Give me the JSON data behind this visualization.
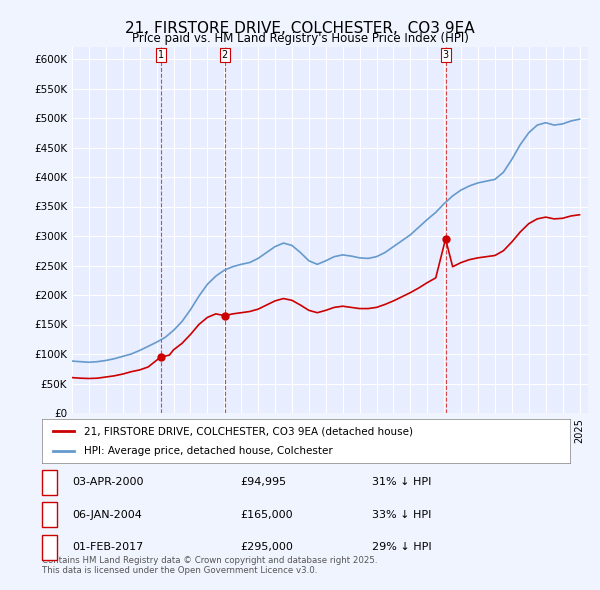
{
  "title": "21, FIRSTORE DRIVE, COLCHESTER,  CO3 9EA",
  "subtitle": "Price paid vs. HM Land Registry's House Price Index (HPI)",
  "ylabel_ticks": [
    "£0",
    "£50K",
    "£100K",
    "£150K",
    "£200K",
    "£250K",
    "£300K",
    "£350K",
    "£400K",
    "£450K",
    "£500K",
    "£550K",
    "£600K"
  ],
  "ylim": [
    0,
    620000
  ],
  "xlim_start": 1995.0,
  "xlim_end": 2025.5,
  "background_color": "#f0f4ff",
  "plot_bg_color": "#e8eeff",
  "grid_color": "#ffffff",
  "red_line_color": "#cc0000",
  "blue_line_color": "#6699cc",
  "sale_dates": [
    2000.25,
    2004.02,
    2017.08
  ],
  "sale_prices": [
    94995,
    165000,
    295000
  ],
  "sale_labels": [
    "1",
    "2",
    "3"
  ],
  "hpi_x": [
    1995,
    1995.5,
    1996,
    1996.5,
    1997,
    1997.5,
    1998,
    1998.5,
    1999,
    1999.5,
    2000,
    2000.5,
    2001,
    2001.5,
    2002,
    2002.5,
    2003,
    2003.5,
    2004,
    2004.5,
    2005,
    2005.5,
    2006,
    2006.5,
    2007,
    2007.5,
    2008,
    2008.5,
    2009,
    2009.5,
    2010,
    2010.5,
    2011,
    2011.5,
    2012,
    2012.5,
    2013,
    2013.5,
    2014,
    2014.5,
    2015,
    2015.5,
    2016,
    2016.5,
    2017,
    2017.5,
    2018,
    2018.5,
    2019,
    2019.5,
    2020,
    2020.5,
    2021,
    2021.5,
    2022,
    2022.5,
    2023,
    2023.5,
    2024,
    2024.5,
    2025
  ],
  "hpi_y": [
    88000,
    87000,
    86000,
    87000,
    89000,
    92000,
    96000,
    100000,
    106000,
    113000,
    120000,
    128000,
    140000,
    155000,
    175000,
    198000,
    218000,
    232000,
    242000,
    248000,
    252000,
    255000,
    262000,
    272000,
    282000,
    288000,
    284000,
    272000,
    258000,
    252000,
    258000,
    265000,
    268000,
    266000,
    263000,
    262000,
    265000,
    272000,
    282000,
    292000,
    302000,
    315000,
    328000,
    340000,
    355000,
    368000,
    378000,
    385000,
    390000,
    393000,
    396000,
    408000,
    430000,
    455000,
    475000,
    488000,
    492000,
    488000,
    490000,
    495000,
    498000
  ],
  "price_x": [
    1995.0,
    1995.5,
    1996.0,
    1996.5,
    1997.0,
    1997.5,
    1998.0,
    1998.5,
    1999.0,
    1999.5,
    2000.25,
    2000.75,
    2001.0,
    2001.5,
    2002.0,
    2002.5,
    2003.0,
    2003.5,
    2004.02,
    2004.5,
    2005.0,
    2005.5,
    2006.0,
    2006.5,
    2007.0,
    2007.5,
    2008.0,
    2008.5,
    2009.0,
    2009.5,
    2010.0,
    2010.5,
    2011.0,
    2011.5,
    2012.0,
    2012.5,
    2013.0,
    2013.5,
    2014.0,
    2014.5,
    2015.0,
    2015.5,
    2016.0,
    2016.5,
    2017.08,
    2017.5,
    2018.0,
    2018.5,
    2019.0,
    2019.5,
    2020.0,
    2020.5,
    2021.0,
    2021.5,
    2022.0,
    2022.5,
    2023.0,
    2023.5,
    2024.0,
    2024.5,
    2025.0
  ],
  "price_y": [
    60000,
    59000,
    58500,
    59000,
    61000,
    63000,
    66000,
    70000,
    73000,
    78000,
    94995,
    98000,
    107000,
    118000,
    133000,
    150000,
    162000,
    168000,
    165000,
    168000,
    170000,
    172000,
    176000,
    183000,
    190000,
    194000,
    191000,
    183000,
    174000,
    170000,
    174000,
    179000,
    181000,
    179000,
    177000,
    177000,
    179000,
    184000,
    190000,
    197000,
    204000,
    212000,
    221000,
    229000,
    295000,
    248000,
    255000,
    260000,
    263000,
    265000,
    267000,
    275000,
    290000,
    307000,
    321000,
    329000,
    332000,
    329000,
    330000,
    334000,
    336000
  ],
  "legend_entries": [
    "21, FIRSTORE DRIVE, COLCHESTER, CO3 9EA (detached house)",
    "HPI: Average price, detached house, Colchester"
  ],
  "transactions": [
    {
      "num": "1",
      "date": "03-APR-2000",
      "price": "£94,995",
      "pct": "31% ↓ HPI"
    },
    {
      "num": "2",
      "date": "06-JAN-2004",
      "price": "£165,000",
      "pct": "33% ↓ HPI"
    },
    {
      "num": "3",
      "date": "01-FEB-2017",
      "price": "£295,000",
      "pct": "29% ↓ HPI"
    }
  ],
  "footer": "Contains HM Land Registry data © Crown copyright and database right 2025.\nThis data is licensed under the Open Government Licence v3.0.",
  "title_fontsize": 11,
  "subtitle_fontsize": 9,
  "tick_fontsize": 8
}
